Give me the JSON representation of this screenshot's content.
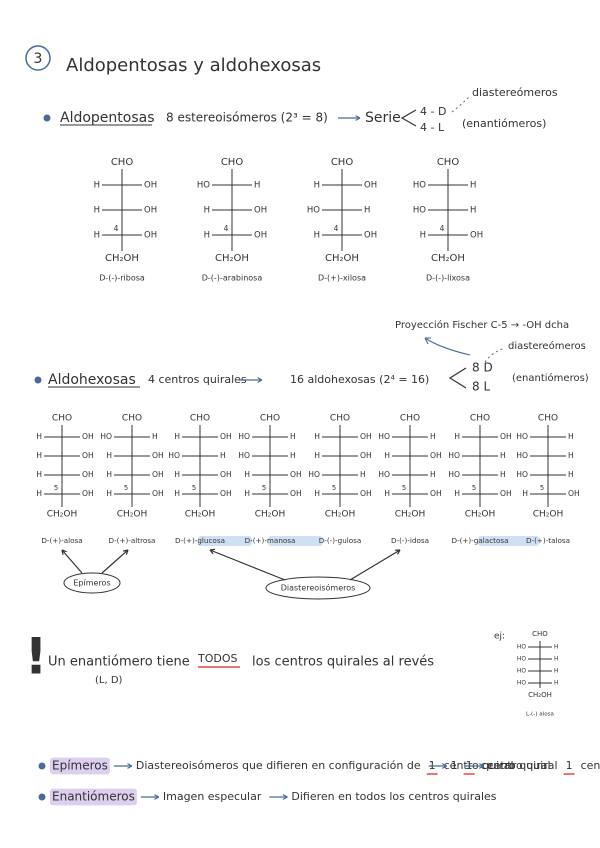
{
  "heading": {
    "number": "3",
    "title": "Aldopentosas y aldohexosas"
  },
  "pentoses": {
    "label": "Aldopentosas",
    "text": "8 estereoisómeros (2³ = 8)",
    "series": "Serie",
    "d": "4 - D",
    "l": "4 - L",
    "diastereomers": "diastereómeros",
    "enantiomers": "(enantiómeros)",
    "structures": [
      {
        "top": "CHO",
        "bottom": "CH₂OH",
        "marker": "4",
        "name": "D-(-)-ribosa",
        "rows": [
          [
            "H",
            "OH"
          ],
          [
            "H",
            "OH"
          ],
          [
            "H",
            "OH"
          ]
        ]
      },
      {
        "top": "CHO",
        "bottom": "CH₂OH",
        "marker": "4",
        "name": "D-(-)-arabinosa",
        "rows": [
          [
            "HO",
            "H"
          ],
          [
            "H",
            "OH"
          ],
          [
            "H",
            "OH"
          ]
        ]
      },
      {
        "top": "CHO",
        "bottom": "CH₂OH",
        "marker": "4",
        "name": "D-(+)-xilosa",
        "rows": [
          [
            "H",
            "OH"
          ],
          [
            "HO",
            "H"
          ],
          [
            "H",
            "OH"
          ]
        ]
      },
      {
        "top": "CHO",
        "bottom": "CH₂OH",
        "marker": "4",
        "name": "D-(-)-lixosa",
        "rows": [
          [
            "HO",
            "H"
          ],
          [
            "HO",
            "H"
          ],
          [
            "H",
            "OH"
          ]
        ]
      }
    ]
  },
  "fischer_note": "Proyección Fischer C-5 → -OH dcha",
  "hexoses": {
    "label": "Aldohexosas",
    "chiral": "4 centros quirales",
    "text": "16 aldohexosas (2⁴ = 16)",
    "d": "8 D",
    "l": "8 L",
    "diastereomers": "diastereómeros",
    "enantiomers": "(enantiómeros)",
    "structures": [
      {
        "top": "CHO",
        "bottom": "CH₂OH",
        "marker": "5",
        "name": "D-(+)-alosa",
        "rows": [
          [
            "H",
            "OH"
          ],
          [
            "H",
            "OH"
          ],
          [
            "H",
            "OH"
          ],
          [
            "H",
            "OH"
          ]
        ]
      },
      {
        "top": "CHO",
        "bottom": "CH₂OH",
        "marker": "5",
        "name": "D-(+)-altrosa",
        "rows": [
          [
            "HO",
            "H"
          ],
          [
            "H",
            "OH"
          ],
          [
            "H",
            "OH"
          ],
          [
            "H",
            "OH"
          ]
        ]
      },
      {
        "top": "CHO",
        "bottom": "CH₂OH",
        "marker": "5",
        "name": "D-(+)-glucosa",
        "highlighted": true,
        "rows": [
          [
            "H",
            "OH"
          ],
          [
            "HO",
            "H"
          ],
          [
            "H",
            "OH"
          ],
          [
            "H",
            "OH"
          ]
        ]
      },
      {
        "top": "CHO",
        "bottom": "CH₂OH",
        "marker": "5",
        "name": "D-(+)-manosa",
        "highlighted": true,
        "rows": [
          [
            "HO",
            "H"
          ],
          [
            "HO",
            "H"
          ],
          [
            "H",
            "OH"
          ],
          [
            "H",
            "OH"
          ]
        ]
      },
      {
        "top": "CHO",
        "bottom": "CH₂OH",
        "marker": "5",
        "name": "D-(-)-gulosa",
        "rows": [
          [
            "H",
            "OH"
          ],
          [
            "H",
            "OH"
          ],
          [
            "HO",
            "H"
          ],
          [
            "H",
            "OH"
          ]
        ]
      },
      {
        "top": "CHO",
        "bottom": "CH₂OH",
        "marker": "5",
        "name": "D-(-)-idosa",
        "rows": [
          [
            "HO",
            "H"
          ],
          [
            "H",
            "OH"
          ],
          [
            "HO",
            "H"
          ],
          [
            "H",
            "OH"
          ]
        ]
      },
      {
        "top": "CHO",
        "bottom": "CH₂OH",
        "marker": "5",
        "name": "D-(+)-galactosa",
        "highlighted": true,
        "rows": [
          [
            "H",
            "OH"
          ],
          [
            "HO",
            "H"
          ],
          [
            "HO",
            "H"
          ],
          [
            "H",
            "OH"
          ]
        ]
      },
      {
        "top": "CHO",
        "bottom": "CH₂OH",
        "marker": "5",
        "name": "D-(+)-talosa",
        "rows": [
          [
            "HO",
            "H"
          ],
          [
            "HO",
            "H"
          ],
          [
            "HO",
            "H"
          ],
          [
            "H",
            "OH"
          ]
        ]
      }
    ]
  },
  "bubbles": {
    "epimers": "Epímeros",
    "diastereomers": "Diastereoisómeros"
  },
  "warning": {
    "mark": "!",
    "text1": "Un enantiómero tiene",
    "emphasis": "TODOS",
    "text2": "los centros quirales al revés",
    "note": "(L, D)"
  },
  "example": {
    "label": "ej:",
    "structure": {
      "top": "CHO",
      "bottom": "CH₂OH",
      "name": "L-(-) alosa",
      "rows": [
        [
          "HO",
          "H"
        ],
        [
          "HO",
          "H"
        ],
        [
          "HO",
          "H"
        ],
        [
          "HO",
          "H"
        ]
      ]
    }
  },
  "definitions": [
    {
      "term": "Epímeros",
      "parts": [
        "Diastereoisómeros que difieren en configuración de",
        "1",
        "centro quiral"
      ]
    },
    {
      "term": "Enantiómeros",
      "parts": [
        "Imagen especular",
        "Difieren en todos los centros quirales"
      ]
    }
  ]
}
